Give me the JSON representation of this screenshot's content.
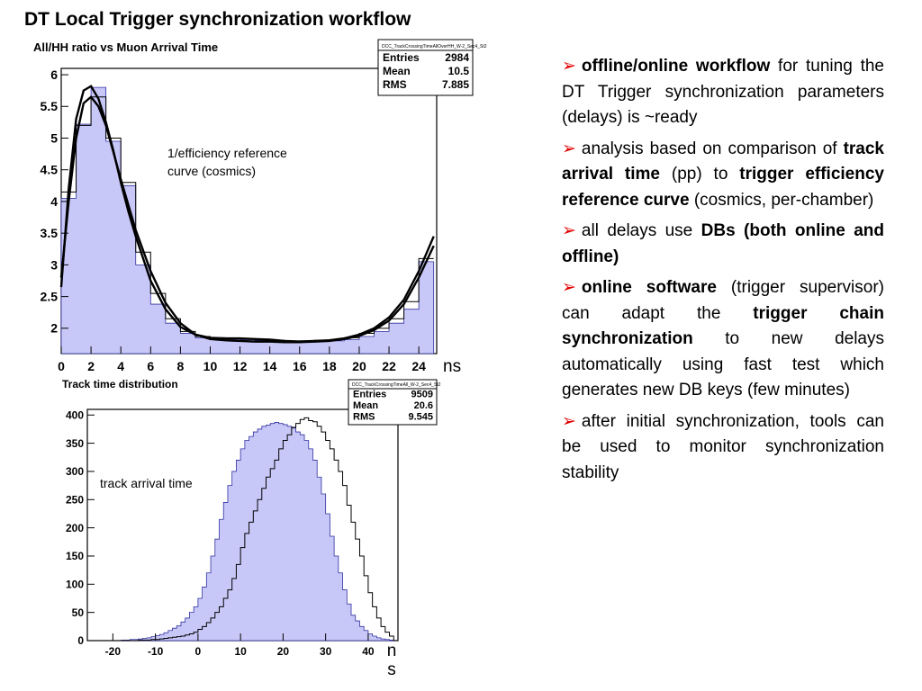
{
  "slide": {
    "title": "DT Local Trigger synchronization workflow"
  },
  "bullets": [
    {
      "parts": [
        {
          "t": "offline/online workflow",
          "b": true
        },
        {
          "t": " for tuning the DT Trigger synchronization parameters (delays) is ~ready",
          "b": false
        }
      ]
    },
    {
      "parts": [
        {
          "t": "analysis based on comparison of ",
          "b": false
        },
        {
          "t": "track arrival time",
          "b": true
        },
        {
          "t": " (pp) to ",
          "b": false
        },
        {
          "t": "trigger efficiency reference curve",
          "b": true
        },
        {
          "t": " (cosmics, per-chamber)",
          "b": false
        }
      ]
    },
    {
      "parts": [
        {
          "t": "all delays use ",
          "b": false
        },
        {
          "t": "DBs (both online and offline)",
          "b": true
        }
      ]
    },
    {
      "parts": [
        {
          "t": "online software",
          "b": true
        },
        {
          "t": " (trigger supervisor) can adapt the ",
          "b": false
        },
        {
          "t": "trigger chain synchronization",
          "b": true
        },
        {
          "t": " to new delays automatically using fast test which generates new DB keys (few minutes)",
          "b": false
        }
      ]
    },
    {
      "parts": [
        {
          "t": "after initial synchronization, tools can be used to monitor synchronization stability",
          "b": false
        }
      ]
    }
  ],
  "chart_data": [
    {
      "type": "bar",
      "title": "All/HH ratio vs Muon Arrival Time",
      "x_unit": "ns",
      "annotation": "1/efficiency reference curve (cosmics)",
      "stats": {
        "name": "DCC_TrackCrossingTimeAllOverHH_W-2_Sec4_St2",
        "rows": [
          [
            "Entries",
            "2984"
          ],
          [
            "Mean",
            "10.5"
          ],
          [
            "RMS",
            "7.885"
          ]
        ]
      },
      "xlim": [
        0,
        25.2
      ],
      "ylim": [
        1.6,
        6.1
      ],
      "x_ticks": [
        0,
        2,
        4,
        6,
        8,
        10,
        12,
        14,
        16,
        18,
        20,
        22,
        24
      ],
      "y_ticks": [
        2,
        2.5,
        3,
        3.5,
        4,
        4.5,
        5,
        5.5,
        6
      ],
      "bin_width": 1,
      "bin_edges_start": 0,
      "filled": [
        4.05,
        5.22,
        5.8,
        4.95,
        4.25,
        3.0,
        2.38,
        2.08,
        1.92,
        1.85,
        1.84,
        1.83,
        1.82,
        1.81,
        1.8,
        1.78,
        1.78,
        1.79,
        1.8,
        1.82,
        1.87,
        1.95,
        2.08,
        2.3,
        3.05
      ],
      "outline": [
        4.15,
        5.2,
        5.65,
        5.0,
        4.3,
        3.2,
        2.55,
        2.15,
        1.95,
        1.87,
        1.85,
        1.84,
        1.83,
        1.82,
        1.81,
        1.79,
        1.8,
        1.81,
        1.82,
        1.85,
        1.92,
        2.0,
        2.15,
        2.42,
        3.1
      ],
      "fit_curves": [
        {
          "x": [
            0,
            0.5,
            1,
            1.5,
            2,
            2.5,
            3,
            3.5,
            4,
            4.5,
            5,
            6,
            7,
            8,
            9,
            10,
            11,
            12,
            13,
            14,
            15,
            16,
            17,
            18,
            19,
            20,
            21,
            22,
            23,
            24,
            25
          ],
          "y": [
            2.65,
            4.2,
            5.3,
            5.75,
            5.82,
            5.62,
            5.25,
            4.8,
            4.3,
            3.85,
            3.45,
            2.75,
            2.3,
            2.02,
            1.9,
            1.85,
            1.84,
            1.84,
            1.83,
            1.82,
            1.8,
            1.79,
            1.8,
            1.81,
            1.84,
            1.9,
            2.0,
            2.17,
            2.45,
            2.9,
            3.45
          ]
        },
        {
          "x": [
            0,
            0.5,
            1,
            1.5,
            2,
            2.5,
            3,
            3.5,
            4,
            4.5,
            5,
            6,
            7,
            8,
            9,
            10,
            11,
            12,
            13,
            14,
            15,
            16,
            17,
            18,
            19,
            20,
            21,
            22,
            23,
            24,
            25
          ],
          "y": [
            2.8,
            4.0,
            5.0,
            5.55,
            5.65,
            5.5,
            5.2,
            4.78,
            4.35,
            3.95,
            3.55,
            2.9,
            2.4,
            2.08,
            1.9,
            1.83,
            1.81,
            1.8,
            1.79,
            1.79,
            1.78,
            1.78,
            1.79,
            1.8,
            1.83,
            1.88,
            1.97,
            2.12,
            2.38,
            2.8,
            3.3
          ]
        }
      ]
    },
    {
      "type": "bar",
      "title": "Track time distribution",
      "x_unit": "ns",
      "annotation": "track arrival time",
      "stats": {
        "name": "DCC_TrackCrossingTimeAll_W-2_Sec4_St2",
        "rows": [
          [
            "Entries",
            "9509"
          ],
          [
            "Mean",
            "20.6"
          ],
          [
            "RMS",
            "9.545"
          ]
        ]
      },
      "xlim": [
        -26,
        47
      ],
      "ylim": [
        0,
        410
      ],
      "x_ticks": [
        -20,
        -10,
        0,
        10,
        20,
        30,
        40
      ],
      "y_ticks": [
        0,
        50,
        100,
        150,
        200,
        250,
        300,
        350,
        400
      ],
      "bin_width": 1,
      "bin_edges_start": -26,
      "filled": [
        0,
        0,
        0,
        0,
        0,
        0,
        0,
        0,
        1,
        1,
        2,
        2,
        3,
        4,
        5,
        7,
        9,
        11,
        14,
        18,
        22,
        26,
        33,
        40,
        50,
        60,
        75,
        95,
        120,
        150,
        180,
        215,
        245,
        275,
        300,
        320,
        340,
        355,
        362,
        370,
        375,
        380,
        382,
        385,
        387,
        385,
        383,
        380,
        377,
        370,
        365,
        355,
        340,
        320,
        290,
        260,
        225,
        185,
        150,
        120,
        90,
        65,
        45,
        35,
        25,
        18,
        12,
        8,
        5,
        3,
        2,
        1,
        0
      ],
      "outline": [
        0,
        0,
        0,
        0,
        0,
        0,
        0,
        0,
        0,
        0,
        0,
        0,
        1,
        1,
        1,
        2,
        2,
        3,
        4,
        5,
        6,
        7,
        8,
        10,
        12,
        15,
        20,
        25,
        32,
        40,
        50,
        60,
        75,
        90,
        110,
        135,
        165,
        190,
        210,
        230,
        250,
        270,
        290,
        305,
        320,
        340,
        355,
        365,
        378,
        385,
        392,
        395,
        390,
        388,
        380,
        370,
        355,
        340,
        320,
        300,
        275,
        240,
        210,
        180,
        150,
        115,
        85,
        60,
        40,
        25,
        15,
        8,
        0
      ]
    }
  ]
}
